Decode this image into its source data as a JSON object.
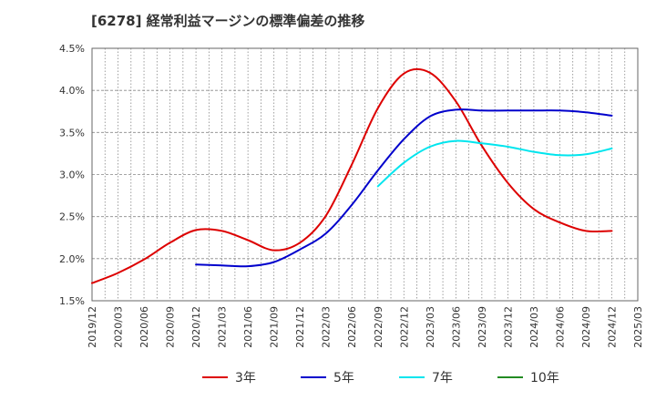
{
  "chart_data": {
    "type": "line",
    "title": "[6278]  経常利益マージンの標準偏差の推移",
    "xlabel": "",
    "ylabel": "",
    "x": [
      "2019/12",
      "2020/03",
      "2020/06",
      "2020/09",
      "2020/12",
      "2021/03",
      "2021/06",
      "2021/09",
      "2021/12",
      "2022/03",
      "2022/06",
      "2022/09",
      "2022/12",
      "2023/03",
      "2023/06",
      "2023/09",
      "2023/12",
      "2024/03",
      "2024/06",
      "2024/09",
      "2024/12",
      "2025/03"
    ],
    "y_ticks": [
      "1.5%",
      "2.0%",
      "2.5%",
      "3.0%",
      "3.5%",
      "4.0%",
      "4.5%"
    ],
    "ylim": [
      1.5,
      4.5
    ],
    "y_unit": "%",
    "grid": true,
    "legend_position": "bottom",
    "series": [
      {
        "name": "3年",
        "color": "#dd0000",
        "values": [
          1.71,
          1.83,
          1.99,
          2.19,
          2.34,
          2.33,
          2.22,
          2.1,
          2.19,
          2.51,
          3.12,
          3.79,
          4.2,
          4.21,
          3.87,
          3.34,
          2.9,
          2.59,
          2.43,
          2.33,
          2.33,
          null
        ]
      },
      {
        "name": "5年",
        "color": "#0000cc",
        "values": [
          null,
          null,
          null,
          null,
          1.93,
          1.92,
          1.91,
          1.96,
          2.11,
          2.3,
          2.64,
          3.05,
          3.42,
          3.69,
          3.77,
          3.76,
          3.76,
          3.76,
          3.76,
          3.74,
          3.7,
          null
        ]
      },
      {
        "name": "7年",
        "color": "#00e5ee",
        "values": [
          null,
          null,
          null,
          null,
          null,
          null,
          null,
          null,
          null,
          null,
          null,
          2.86,
          3.14,
          3.33,
          3.4,
          3.37,
          3.33,
          3.27,
          3.23,
          3.24,
          3.31,
          null
        ]
      },
      {
        "name": "10年",
        "color": "#228b22",
        "values": [
          null,
          null,
          null,
          null,
          null,
          null,
          null,
          null,
          null,
          null,
          null,
          null,
          null,
          null,
          null,
          null,
          null,
          null,
          null,
          null,
          null,
          null
        ]
      }
    ]
  }
}
